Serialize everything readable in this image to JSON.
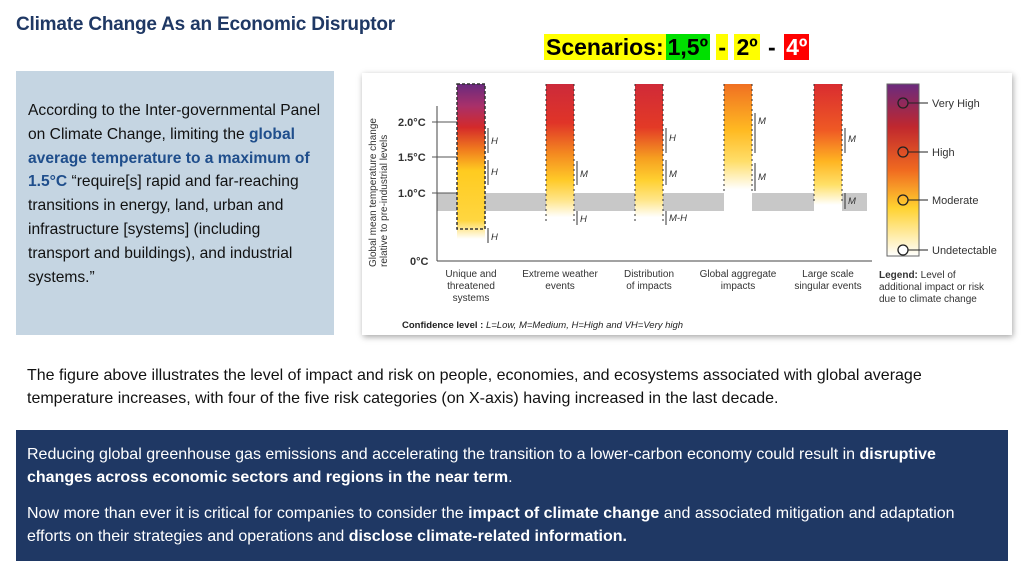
{
  "title": "Climate Change As an Economic Disruptor",
  "scenarios": {
    "label": "Scenarios:",
    "s1": "1,5º",
    "dash1": "-",
    "s2": "2º",
    "dash2": "-",
    "s3": "4º"
  },
  "quote": {
    "p1": "According to the Inter-governmental Panel on Climate Change, limiting the ",
    "p2": "global average temperature to a maximum of 1.5°C",
    "p3": " “require[s] rapid and far-reaching transitions in energy, land, urban and infrastructure [systems] (including transport and buildings), and industrial systems.”"
  },
  "figure": {
    "y_axis_label_line1": "Global mean temperature change",
    "y_axis_label_line2": "relative to pre-industrial levels",
    "y_ticks": [
      "2.0°C",
      "1.5°C",
      "1.0°C",
      "0°C"
    ],
    "categories": [
      {
        "label1": "Unique and",
        "label2": "threatened",
        "label3": "systems"
      },
      {
        "label1": "Extreme weather",
        "label2": "events",
        "label3": ""
      },
      {
        "label1": "Distribution",
        "label2": "of impacts",
        "label3": ""
      },
      {
        "label1": "Global aggregate",
        "label2": "impacts",
        "label3": ""
      },
      {
        "label1": "Large scale",
        "label2": "singular events",
        "label3": ""
      }
    ],
    "confidence_marks": [
      "H",
      "H",
      "H",
      "M",
      "H",
      "M-H",
      "H",
      "M",
      "M",
      "M",
      "M"
    ],
    "legend_levels": [
      "Very High",
      "High",
      "Moderate",
      "Undetectable"
    ],
    "legend_note_bold": "Legend:",
    "legend_note_1": " Level of",
    "legend_note_2": "additional impact or risk",
    "legend_note_3": "due to climate change",
    "confidence_bold": "Confidence level :",
    "confidence_text": " L=Low, M=Medium,  H=High and VH=Very high"
  },
  "description": "The figure above illustrates the level of impact and risk on people, economies, and ecosystems associated with global average temperature increases, with four of the five risk categories (on X-axis) having increased in the last decade.",
  "box": {
    "p1_a": "Reducing global greenhouse gas emissions and accelerating the transition to a lower-carbon economy could result in ",
    "p1_b": "disruptive changes across economic sectors and regions in the near term",
    "p1_c": ".",
    "p2_a": "Now more than ever it is critical for companies to consider the ",
    "p2_b": "impact of climate change",
    "p2_c": " and associated mitigation and adaptation efforts on their strategies and operations and ",
    "p2_d": "disclose climate-related information."
  },
  "colors": {
    "title": "#1f3864",
    "quote_bg": "#c5d5e2",
    "box_bg": "#1f3864",
    "emphasis": "#1f4e8c"
  }
}
